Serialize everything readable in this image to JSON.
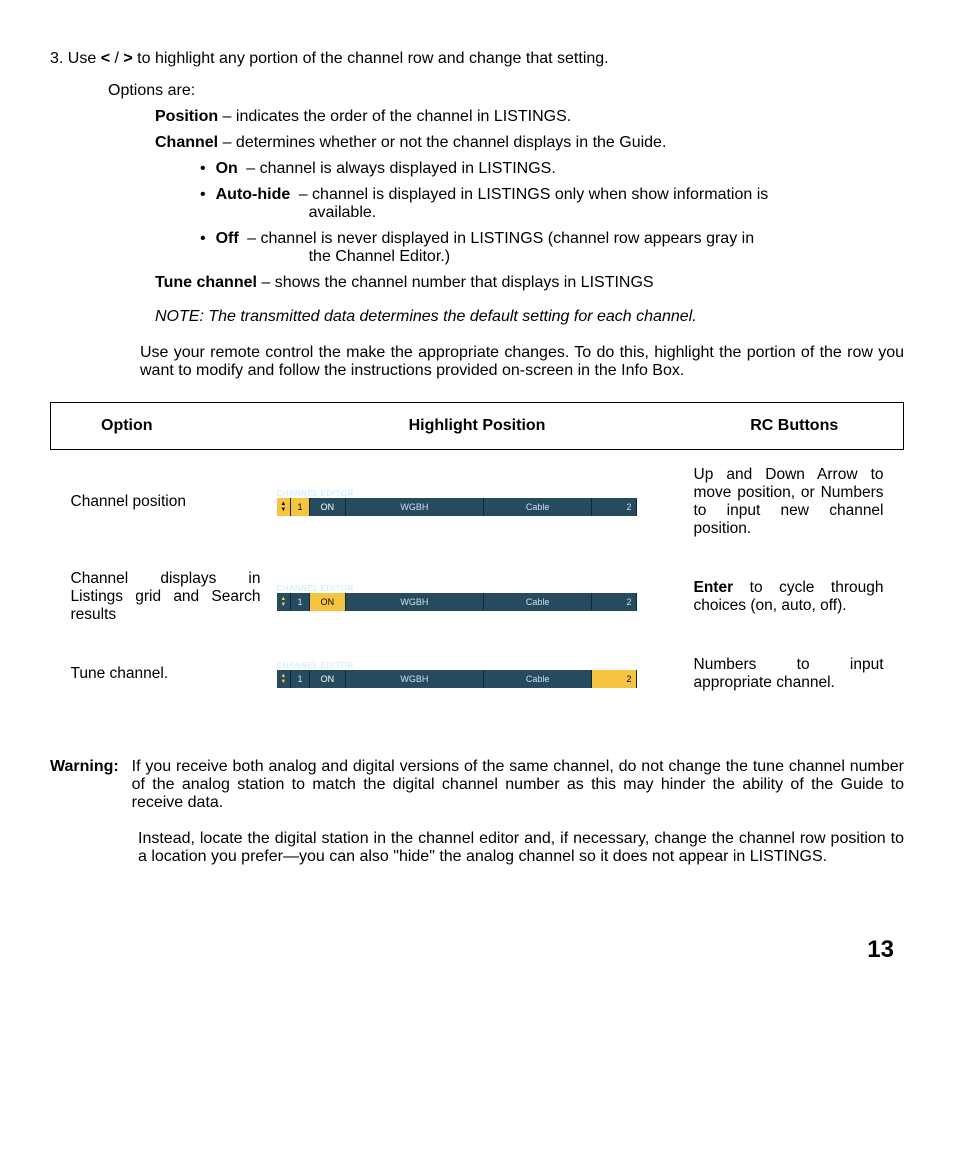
{
  "step": {
    "number": "3.",
    "text_a": "Use ",
    "lt": "<",
    "slash": " / ",
    "gt": ">",
    "text_b": " to highlight any portion of the channel row and change that setting.",
    "options_label": "Options are:"
  },
  "defs": {
    "position": {
      "head": "Position",
      "body": " – indicates the order of the channel in LISTINGS."
    },
    "channel": {
      "head": "Channel",
      "body": " – determines whether or not the channel displays in the Guide."
    },
    "bullets": [
      {
        "dot": "•",
        "head": "On",
        "body": " – channel is always displayed in LISTINGS."
      },
      {
        "dot": "•",
        "head": "Auto-hide",
        "body": " – channel is displayed in LISTINGS only when show information is",
        "cont": "available."
      },
      {
        "dot": "•",
        "head": "Off",
        "body": " – channel is never displayed in LISTINGS (channel row appears gray in",
        "cont": "the Channel Editor.)"
      }
    ],
    "tune": {
      "head": "Tune channel",
      "body": " – shows the channel number that displays in LISTINGS"
    }
  },
  "note": {
    "label": "NOTE",
    "sep": ": ",
    "body": "The transmitted data determines the default setting for each channel."
  },
  "para": "Use your remote control the make the appropriate changes. To do this, highlight the portion of the row you want to modify and follow the instructions provided on-screen in the Info Box.",
  "table": {
    "headers": {
      "c1": "Option",
      "c2": "Highlight Position",
      "c3": "RC Buttons"
    },
    "rows": [
      {
        "option": "Channel position",
        "rc": "Up and Down Arrow to move position, or Numbers to input new channel position.",
        "highlight": "pos",
        "ce": {
          "label": "CHANNEL EDITOR",
          "pos": "1",
          "on": "ON",
          "name": "WGBH",
          "src": "Cable",
          "num": "2"
        }
      },
      {
        "option": "Channel displays in Listings grid and Search results",
        "rc_pre": "Enter",
        "rc": " to cycle through choices (on, auto, off).",
        "highlight": "on",
        "ce": {
          "label": "CHANNEL EDITOR",
          "pos": "1",
          "on": "ON",
          "name": "WGBH",
          "src": "Cable",
          "num": "2"
        }
      },
      {
        "option": "Tune channel.",
        "rc": "Numbers to input appropriate channel.",
        "highlight": "num",
        "ce": {
          "label": "CHANNEL EDITOR",
          "pos": "1",
          "on": "ON",
          "name": "WGBH",
          "src": "Cable",
          "num": "2"
        }
      }
    ]
  },
  "warning": {
    "label": "Warning",
    "sep": ":",
    "body": "If you receive both analog and digital versions of the same channel, do not change the tune channel number of the analog station to match the digital channel number as this may hinder the ability of the Guide to receive data.",
    "para2": "Instead, locate the digital station in the channel editor and, if necessary, change the channel row position to a location you prefer—you can also \"hide\" the analog channel so it does not appear in LISTINGS."
  },
  "page_number": "13",
  "colors": {
    "bar_bg": "#264a5e",
    "bar_text": "#cfe3ee",
    "highlight": "#f5c542"
  }
}
